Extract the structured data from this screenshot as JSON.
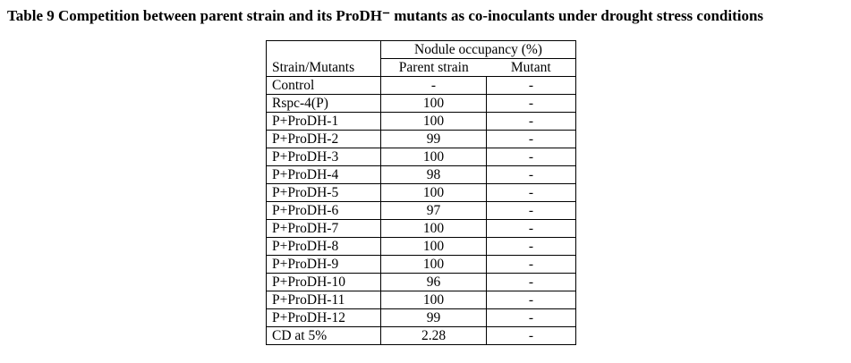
{
  "title": "Table 9 Competition between parent strain and its ProDH⁻ mutants as co-inoculants under drought stress conditions",
  "table": {
    "col1_header": "Strain/Mutants",
    "group_header": "Nodule occupancy (%)",
    "sub_headers": [
      "Parent strain",
      "Mutant"
    ],
    "rows": [
      {
        "strain": "Control",
        "parent": "-",
        "mutant": "-"
      },
      {
        "strain": "Rspc-4(P)",
        "parent": "100",
        "mutant": "-"
      },
      {
        "strain": "P+ProDH-1",
        "parent": "100",
        "mutant": "-"
      },
      {
        "strain": "P+ProDH-2",
        "parent": "99",
        "mutant": "-"
      },
      {
        "strain": "P+ProDH-3",
        "parent": "100",
        "mutant": "-"
      },
      {
        "strain": "P+ProDH-4",
        "parent": "98",
        "mutant": "-"
      },
      {
        "strain": "P+ProDH-5",
        "parent": "100",
        "mutant": "-"
      },
      {
        "strain": "P+ProDH-6",
        "parent": "97",
        "mutant": "-"
      },
      {
        "strain": "P+ProDH-7",
        "parent": "100",
        "mutant": "-"
      },
      {
        "strain": "P+ProDH-8",
        "parent": "100",
        "mutant": "-"
      },
      {
        "strain": "P+ProDH-9",
        "parent": "100",
        "mutant": "-"
      },
      {
        "strain": "P+ProDH-10",
        "parent": "96",
        "mutant": "-"
      },
      {
        "strain": "P+ProDH-11",
        "parent": "100",
        "mutant": "-"
      },
      {
        "strain": "P+ProDH-12",
        "parent": "99",
        "mutant": "-"
      },
      {
        "strain": "CD at 5%",
        "parent": "2.28",
        "mutant": "-"
      }
    ]
  }
}
